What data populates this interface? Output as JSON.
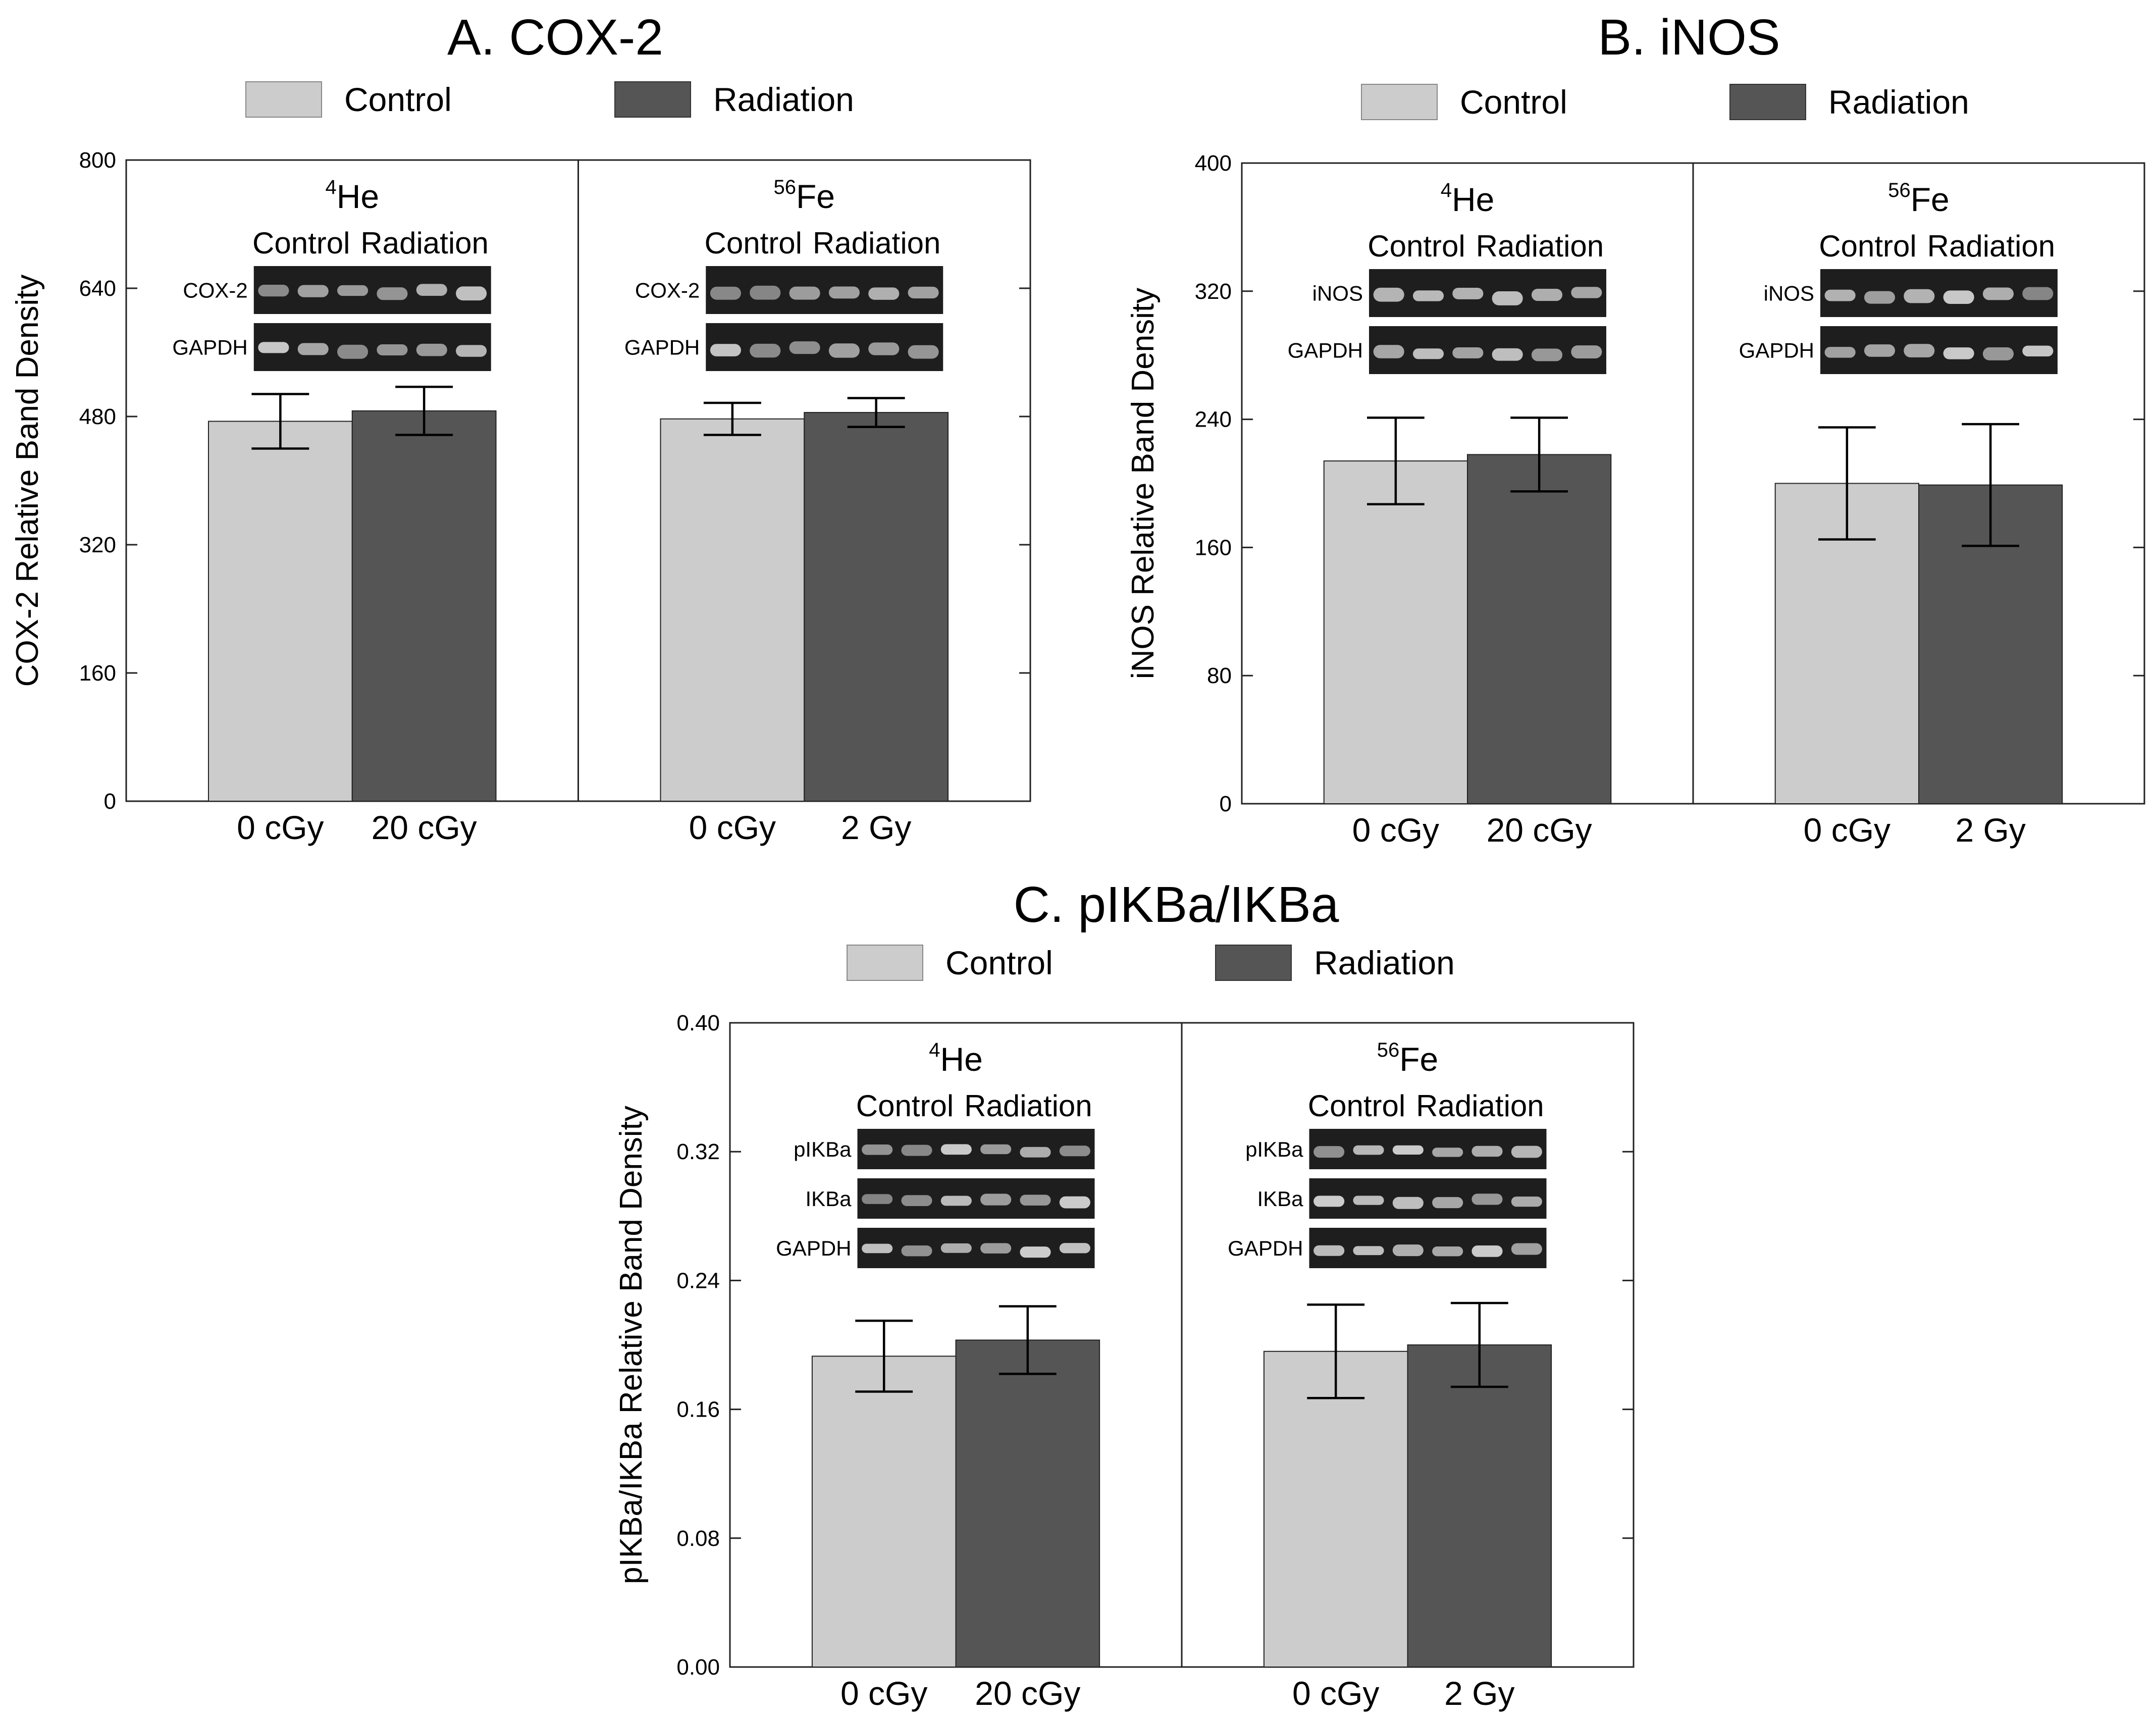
{
  "colors": {
    "control": "#cccccc",
    "radiation": "#555555",
    "blot_bg": "#1e1e1e",
    "blot_band": "#d8d8d8"
  },
  "legend": {
    "control": "Control",
    "radiation": "Radiation"
  },
  "chart_data": [
    {
      "id": "A",
      "type": "bar",
      "title": "A. COX-2",
      "ylabel": "COX-2 Relative Band Density",
      "ylim": [
        0,
        800
      ],
      "yticks": [
        "0",
        "160",
        "320",
        "480",
        "640",
        "800"
      ],
      "panels": [
        {
          "ion_mass": "4",
          "ion": "He",
          "lanes": [
            "Control",
            "Radiation"
          ],
          "blots": [
            "COX-2",
            "GAPDH"
          ],
          "categories": [
            "0 cGy",
            "20 cGy"
          ],
          "series": [
            {
              "name": "Control",
              "value": 474,
              "error": 34
            },
            {
              "name": "Radiation",
              "value": 487,
              "error": 30
            }
          ]
        },
        {
          "ion_mass": "56",
          "ion": "Fe",
          "lanes": [
            "Control",
            "Radiation"
          ],
          "blots": [
            "COX-2",
            "GAPDH"
          ],
          "categories": [
            "0 cGy",
            "2 Gy"
          ],
          "series": [
            {
              "name": "Control",
              "value": 477,
              "error": 20
            },
            {
              "name": "Radiation",
              "value": 485,
              "error": 18
            }
          ]
        }
      ]
    },
    {
      "id": "B",
      "type": "bar",
      "title": "B. iNOS",
      "ylabel": "iNOS Relative Band Density",
      "ylim": [
        0,
        400
      ],
      "yticks": [
        "0",
        "80",
        "160",
        "240",
        "320",
        "400"
      ],
      "panels": [
        {
          "ion_mass": "4",
          "ion": "He",
          "lanes": [
            "Control",
            "Radiation"
          ],
          "blots": [
            "iNOS",
            "GAPDH"
          ],
          "categories": [
            "0 cGy",
            "20 cGy"
          ],
          "series": [
            {
              "name": "Control",
              "value": 214,
              "error": 27
            },
            {
              "name": "Radiation",
              "value": 218,
              "error": 23
            }
          ]
        },
        {
          "ion_mass": "56",
          "ion": "Fe",
          "lanes": [
            "Control",
            "Radiation"
          ],
          "blots": [
            "iNOS",
            "GAPDH"
          ],
          "categories": [
            "0 cGy",
            "2 Gy"
          ],
          "series": [
            {
              "name": "Control",
              "value": 200,
              "error": 35
            },
            {
              "name": "Radiation",
              "value": 199,
              "error": 38
            }
          ]
        }
      ]
    },
    {
      "id": "C",
      "type": "bar",
      "title": "C. pIKBa/IKBa",
      "ylabel": "pIKBa/IKBa Relative Band Density",
      "ylim": [
        0,
        0.4
      ],
      "yticks": [
        "0.00",
        "0.08",
        "0.16",
        "0.24",
        "0.32",
        "0.40"
      ],
      "panels": [
        {
          "ion_mass": "4",
          "ion": "He",
          "lanes": [
            "Control",
            "Radiation"
          ],
          "blots": [
            "pIKBa",
            "IKBa",
            "GAPDH"
          ],
          "categories": [
            "0 cGy",
            "20 cGy"
          ],
          "series": [
            {
              "name": "Control",
              "value": 0.193,
              "error": 0.022
            },
            {
              "name": "Radiation",
              "value": 0.203,
              "error": 0.021
            }
          ]
        },
        {
          "ion_mass": "56",
          "ion": "Fe",
          "lanes": [
            "Control",
            "Radiation"
          ],
          "blots": [
            "pIKBa",
            "IKBa",
            "GAPDH"
          ],
          "categories": [
            "0 cGy",
            "2 Gy"
          ],
          "series": [
            {
              "name": "Control",
              "value": 0.196,
              "error": 0.029
            },
            {
              "name": "Radiation",
              "value": 0.2,
              "error": 0.026
            }
          ]
        }
      ]
    }
  ]
}
